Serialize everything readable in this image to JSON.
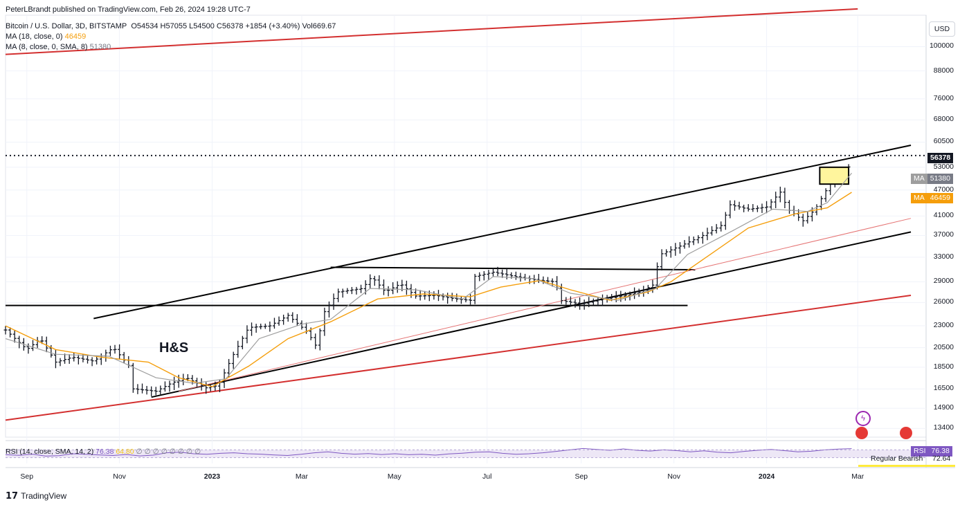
{
  "header": {
    "published": "PeterLBrandt published on TradingView.com, Feb 26, 2024 19:28 UTC-7",
    "symbol": "Bitcoin / U.S. Dollar, 3D, BITSTAMP",
    "ohlc": "O54534 H57055 L54500 C56378 +1854 (+3.40%) Vol669.67",
    "ma1_label": "MA (18, close, 0)",
    "ma1_value": "46459",
    "ma2_label": "MA (8, close, 0, SMA, 8)",
    "ma2_value": "51380"
  },
  "currency_button": "USD",
  "price_tags": {
    "last": "56378",
    "ma8_name": "MA",
    "ma8": "51380",
    "ma18_name": "MA",
    "ma18": "46459"
  },
  "rsi": {
    "label": "RSI (14, close, SMA, 14, 2)",
    "value": "76.38",
    "ma_value": "64.80",
    "placeholders": "∅ ∅ ∅ ∅ ∅ ∅ ∅ ∅",
    "tag_name": "RSI",
    "tag_value": "76.38",
    "divergence_label": "Regular Bearish",
    "divergence_value": "72.64"
  },
  "annotation": "H&S",
  "footer_logo": "TradingView",
  "colors": {
    "up": "#131722",
    "ma18": "#f59e0b",
    "ma8": "#9e9e9e",
    "channel": "#000000",
    "red_trend": "#d32f2f",
    "rsi": "#7e57c2",
    "rsi_band": "#ede7f6",
    "last_price": "#131722"
  },
  "chart_data": {
    "type": "line",
    "scale": "log",
    "title": "Bitcoin / U.S. Dollar, 3D, BITSTAMP",
    "y_ticks": [
      100000,
      88000,
      76000,
      68000,
      60500,
      53000,
      47000,
      41000,
      37000,
      33000,
      29000,
      26000,
      23000,
      20500,
      18500,
      16500,
      14900,
      13400
    ],
    "x_ticks": [
      {
        "label": "Sep",
        "date": "2022-09-01",
        "bold": false
      },
      {
        "label": "Nov",
        "date": "2022-11-01",
        "bold": false
      },
      {
        "label": "2023",
        "date": "2023-01-01",
        "bold": true
      },
      {
        "label": "Mar",
        "date": "2023-03-01",
        "bold": false
      },
      {
        "label": "May",
        "date": "2023-05-01",
        "bold": false
      },
      {
        "label": "Jul",
        "date": "2023-07-01",
        "bold": false
      },
      {
        "label": "Sep",
        "date": "2023-09-01",
        "bold": false
      },
      {
        "label": "Nov",
        "date": "2023-11-01",
        "bold": false
      },
      {
        "label": "2024",
        "date": "2024-01-01",
        "bold": true
      },
      {
        "label": "Mar",
        "date": "2024-03-01",
        "bold": false
      }
    ],
    "last_price": 56378,
    "price_path": [
      [
        "2022-08-18",
        22500
      ],
      [
        "2022-09-01",
        20300
      ],
      [
        "2022-09-10",
        21500
      ],
      [
        "2022-09-20",
        19000
      ],
      [
        "2022-10-01",
        19500
      ],
      [
        "2022-10-15",
        19100
      ],
      [
        "2022-10-28",
        20500
      ],
      [
        "2022-11-08",
        18500
      ],
      [
        "2022-11-10",
        16500
      ],
      [
        "2022-11-25",
        16300
      ],
      [
        "2022-12-05",
        17000
      ],
      [
        "2022-12-15",
        17500
      ],
      [
        "2022-12-28",
        16600
      ],
      [
        "2023-01-05",
        16800
      ],
      [
        "2023-01-14",
        19500
      ],
      [
        "2023-01-25",
        22800
      ],
      [
        "2023-02-08",
        23000
      ],
      [
        "2023-02-20",
        24300
      ],
      [
        "2023-03-05",
        22200
      ],
      [
        "2023-03-11",
        20500
      ],
      [
        "2023-03-15",
        24500
      ],
      [
        "2023-03-25",
        27500
      ],
      [
        "2023-04-10",
        28000
      ],
      [
        "2023-04-16",
        29800
      ],
      [
        "2023-04-25",
        27500
      ],
      [
        "2023-05-05",
        28700
      ],
      [
        "2023-05-15",
        26900
      ],
      [
        "2023-05-28",
        27000
      ],
      [
        "2023-06-10",
        26500
      ],
      [
        "2023-06-20",
        26300
      ],
      [
        "2023-06-22",
        29800
      ],
      [
        "2023-07-05",
        30500
      ],
      [
        "2023-07-20",
        29800
      ],
      [
        "2023-08-05",
        29200
      ],
      [
        "2023-08-15",
        29000
      ],
      [
        "2023-08-18",
        26300
      ],
      [
        "2023-09-01",
        25800
      ],
      [
        "2023-09-15",
        26500
      ],
      [
        "2023-09-30",
        27000
      ],
      [
        "2023-10-10",
        27500
      ],
      [
        "2023-10-18",
        28500
      ],
      [
        "2023-10-23",
        33500
      ],
      [
        "2023-11-05",
        35000
      ],
      [
        "2023-11-20",
        37000
      ],
      [
        "2023-12-02",
        39000
      ],
      [
        "2023-12-08",
        43500
      ],
      [
        "2023-12-20",
        42500
      ],
      [
        "2024-01-01",
        43000
      ],
      [
        "2024-01-10",
        46500
      ],
      [
        "2024-01-15",
        42500
      ],
      [
        "2024-01-25",
        40000
      ],
      [
        "2024-02-02",
        42500
      ],
      [
        "2024-02-10",
        47500
      ],
      [
        "2024-02-15",
        51800
      ],
      [
        "2024-02-23",
        51500
      ],
      [
        "2024-02-26",
        56378
      ]
    ],
    "ma18_path": [
      [
        "2022-08-18",
        23000
      ],
      [
        "2022-09-20",
        20300
      ],
      [
        "2022-10-20",
        19500
      ],
      [
        "2022-11-20",
        19000
      ],
      [
        "2022-12-10",
        17500
      ],
      [
        "2023-01-01",
        16700
      ],
      [
        "2023-01-25",
        18600
      ],
      [
        "2023-02-20",
        21500
      ],
      [
        "2023-03-20",
        23500
      ],
      [
        "2023-04-20",
        26500
      ],
      [
        "2023-05-20",
        27200
      ],
      [
        "2023-06-20",
        26800
      ],
      [
        "2023-07-10",
        28200
      ],
      [
        "2023-08-05",
        29200
      ],
      [
        "2023-08-25",
        27800
      ],
      [
        "2023-09-20",
        26300
      ],
      [
        "2023-10-15",
        27500
      ],
      [
        "2023-10-30",
        29000
      ],
      [
        "2023-11-25",
        33500
      ],
      [
        "2023-12-20",
        38500
      ],
      [
        "2024-01-20",
        41500
      ],
      [
        "2024-02-10",
        42800
      ],
      [
        "2024-02-26",
        46459
      ]
    ],
    "ma8_path": [
      [
        "2022-08-18",
        21500
      ],
      [
        "2022-09-20",
        19800
      ],
      [
        "2022-10-25",
        19600
      ],
      [
        "2022-11-25",
        17500
      ],
      [
        "2022-12-20",
        17000
      ],
      [
        "2023-01-10",
        17400
      ],
      [
        "2023-02-01",
        21500
      ],
      [
        "2023-03-01",
        23200
      ],
      [
        "2023-03-20",
        23800
      ],
      [
        "2023-04-15",
        28000
      ],
      [
        "2023-05-15",
        27800
      ],
      [
        "2023-06-15",
        26500
      ],
      [
        "2023-07-05",
        29800
      ],
      [
        "2023-08-01",
        29500
      ],
      [
        "2023-08-25",
        27300
      ],
      [
        "2023-09-25",
        26300
      ],
      [
        "2023-10-20",
        28000
      ],
      [
        "2023-11-10",
        33500
      ],
      [
        "2023-12-10",
        38000
      ],
      [
        "2024-01-05",
        42500
      ],
      [
        "2024-01-28",
        42000
      ],
      [
        "2024-02-10",
        44000
      ],
      [
        "2024-02-26",
        51380
      ]
    ],
    "trendlines": [
      {
        "name": "channel-upper",
        "color": "#000000",
        "from": [
          "2022-10-15",
          23900
        ],
        "to": [
          "2024-04-05",
          59500
        ]
      },
      {
        "name": "channel-lower",
        "color": "#000000",
        "from": [
          "2022-11-22",
          15800
        ],
        "to": [
          "2024-04-05",
          37700
        ]
      },
      {
        "name": "neckline",
        "color": "#000000",
        "from": [
          "2022-08-18",
          25600
        ],
        "to": [
          "2023-11-10",
          25600
        ]
      },
      {
        "name": "range-top",
        "color": "#000000",
        "from": [
          "2023-03-20",
          31300
        ],
        "to": [
          "2023-11-15",
          30900
        ]
      },
      {
        "name": "red-upper",
        "color": "#d32f2f",
        "from": [
          "2022-08-18",
          96000
        ],
        "to": [
          "2024-03-01",
          122000
        ]
      },
      {
        "name": "red-lower",
        "color": "#d32f2f",
        "from": [
          "2022-08-18",
          14000
        ],
        "to": [
          "2024-04-05",
          27000
        ]
      },
      {
        "name": "thin-red",
        "color": "#e57373",
        "from": [
          "2022-12-10",
          16300
        ],
        "to": [
          "2024-04-05",
          40500
        ]
      }
    ],
    "rsi_band": [
      30,
      70
    ],
    "rsi_values": [
      45,
      42,
      48,
      38,
      40,
      50,
      47,
      44,
      41,
      46,
      39,
      43,
      55,
      58,
      50,
      47,
      52,
      55,
      50,
      48,
      44,
      41,
      47,
      55,
      60,
      52,
      48,
      51,
      46,
      50,
      45,
      47,
      43,
      49,
      53,
      58,
      60,
      52,
      47,
      50,
      55,
      62,
      70,
      77,
      72,
      68,
      75,
      68,
      64,
      70,
      66,
      60,
      65,
      58,
      55,
      62,
      68,
      72,
      66,
      60,
      63,
      70,
      74,
      76.38
    ],
    "rsi_ylim": [
      0,
      100
    ]
  }
}
